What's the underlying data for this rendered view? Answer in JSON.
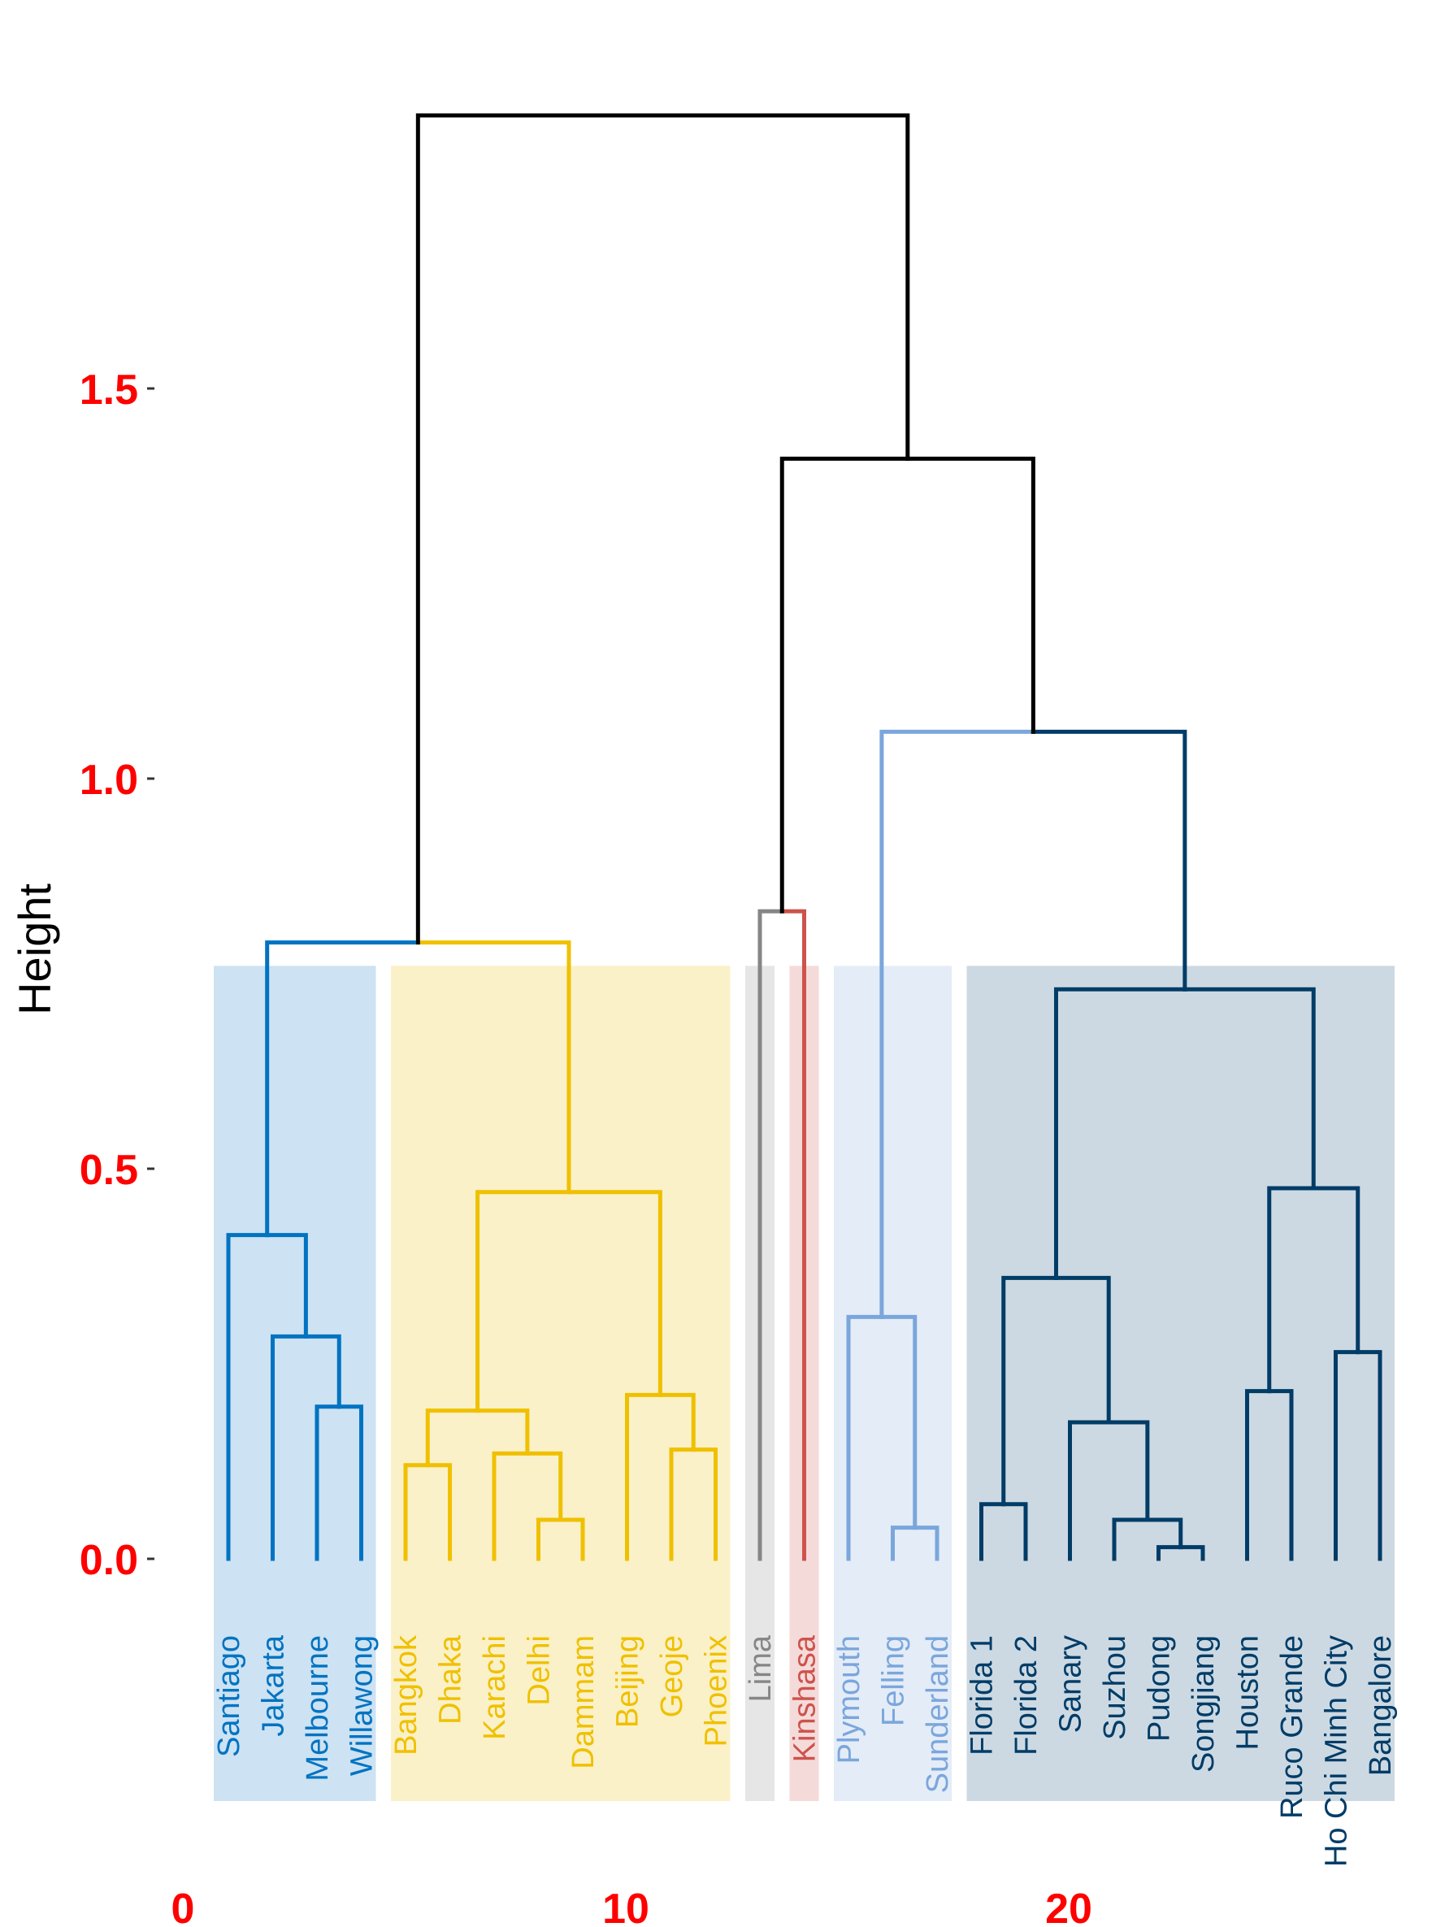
{
  "chart_data": {
    "type": "dendrogram",
    "ylabel": "Height",
    "ylim": [
      -0.3,
      1.85
    ],
    "xlim": [
      0,
      26
    ],
    "yticks": [
      0.0,
      0.5,
      1.0,
      1.5
    ],
    "ytick_labels": [
      "0.0",
      "0.5",
      "1.0",
      "1.5"
    ],
    "xticks": [
      0,
      10,
      20
    ],
    "xtick_labels": [
      "0",
      "10",
      "20"
    ],
    "axis_color": "#ff0000",
    "clusters": [
      {
        "color": "#0073c2",
        "rect_color": "#cde2f2",
        "leaves": [
          "Santiago",
          "Jakarta",
          "Melbourne",
          "Willawong"
        ]
      },
      {
        "color": "#efc000",
        "rect_color": "#fbf1c8",
        "leaves": [
          "Bangkok",
          "Dhaka",
          "Karachi",
          "Delhi",
          "Dammam",
          "Beijing",
          "Geoje",
          "Phoenix"
        ]
      },
      {
        "color": "#868686",
        "rect_color": "#e6e6e6",
        "leaves": [
          "Lima"
        ]
      },
      {
        "color": "#cd534c",
        "rect_color": "#f4dbda",
        "leaves": [
          "Kinshasa"
        ]
      },
      {
        "color": "#7aa6dc",
        "rect_color": "#e4ecf7",
        "leaves": [
          "Plymouth",
          "Felling",
          "Sunderland"
        ]
      },
      {
        "color": "#003c67",
        "rect_color": "#cdd9e2",
        "leaves": [
          "Florida 1",
          "Florida 2",
          "Sanary",
          "Suzhou",
          "Pudong",
          "Songjiang",
          "Houston",
          "Ruco Grande",
          "Ho Chi Minh City",
          "Bangalore"
        ]
      }
    ],
    "merges": [
      {
        "a": "Delhi",
        "b": "Dammam",
        "height": 0.05,
        "color": "#efc000"
      },
      {
        "a": "Pudong",
        "b": "Songjiang",
        "height": 0.015,
        "color": "#003c67"
      },
      {
        "a": "Florida 1",
        "b": "Florida 2",
        "height": 0.07,
        "color": "#003c67"
      },
      {
        "a": "Felling",
        "b": "Sunderland",
        "height": 0.04,
        "color": "#7aa6dc"
      },
      {
        "a": "Suzhou",
        "b": [
          "Pudong",
          "Songjiang"
        ],
        "height": 0.05,
        "color": "#003c67"
      },
      {
        "a": "Bangkok",
        "b": "Dhaka",
        "height": 0.12,
        "color": "#efc000"
      },
      {
        "a": "Karachi",
        "b": [
          "Delhi",
          "Dammam"
        ],
        "height": 0.135,
        "color": "#efc000"
      },
      {
        "a": "Geoje",
        "b": "Phoenix",
        "height": 0.14,
        "color": "#efc000"
      },
      {
        "a": "Sanary",
        "b": [
          "Suzhou",
          "Pudong",
          "Songjiang"
        ],
        "height": 0.175,
        "color": "#003c67"
      },
      {
        "a": [
          "Bangkok",
          "Dhaka"
        ],
        "b": [
          "Karachi",
          "Delhi",
          "Dammam"
        ],
        "height": 0.19,
        "color": "#efc000"
      },
      {
        "a": "Melbourne",
        "b": "Willawong",
        "height": 0.195,
        "color": "#0073c2"
      },
      {
        "a": "Houston",
        "b": "Ruco Grande",
        "height": 0.215,
        "color": "#003c67"
      },
      {
        "a": "Beijing",
        "b": [
          "Geoje",
          "Phoenix"
        ],
        "height": 0.21,
        "color": "#efc000"
      },
      {
        "a": "Ho Chi Minh City",
        "b": "Bangalore",
        "height": 0.265,
        "color": "#003c67"
      },
      {
        "a": "Jakarta",
        "b": [
          "Melbourne",
          "Willawong"
        ],
        "height": 0.285,
        "color": "#0073c2"
      },
      {
        "a": "Plymouth",
        "b": [
          "Felling",
          "Sunderland"
        ],
        "height": 0.31,
        "color": "#7aa6dc"
      },
      {
        "a": [
          "Florida 1",
          "Florida 2"
        ],
        "b": [
          "Sanary",
          "Suzhou",
          "Pudong",
          "Songjiang"
        ],
        "height": 0.36,
        "color": "#003c67"
      },
      {
        "a": "Santiago",
        "b": [
          "Jakarta",
          "Melbourne",
          "Willawong"
        ],
        "height": 0.415,
        "color": "#0073c2"
      },
      {
        "a": [
          "Houston",
          "Ruco Grande"
        ],
        "b": [
          "Ho Chi Minh City",
          "Bangalore"
        ],
        "height": 0.475,
        "color": "#003c67"
      },
      {
        "a": [
          "Bangkok",
          "Dhaka",
          "Karachi",
          "Delhi",
          "Dammam"
        ],
        "b": [
          "Beijing",
          "Geoje",
          "Phoenix"
        ],
        "height": 0.47,
        "color": "#efc000"
      },
      {
        "a": [
          "Florida 1",
          "Florida 2",
          "Sanary",
          "Suzhou",
          "Pudong",
          "Songjiang"
        ],
        "b": [
          "Houston",
          "Ruco Grande",
          "Ho Chi Minh City",
          "Bangalore"
        ],
        "height": 0.73,
        "color": "#003c67"
      },
      {
        "a": [
          "Santiago",
          "Jakarta",
          "Melbourne",
          "Willawong"
        ],
        "b": [
          "Bangkok",
          "Dhaka",
          "Karachi",
          "Delhi",
          "Dammam",
          "Beijing",
          "Geoje",
          "Phoenix"
        ],
        "height": 0.79,
        "color": [
          "#0073c2",
          "#efc000"
        ]
      },
      {
        "a": "Lima",
        "b": "Kinshasa",
        "height": 0.83,
        "color": [
          "#868686",
          "#cd534c"
        ]
      },
      {
        "a": [
          "Plymouth",
          "Felling",
          "Sunderland"
        ],
        "b": [
          "Florida 1",
          "Florida 2",
          "Sanary",
          "Suzhou",
          "Pudong",
          "Songjiang",
          "Houston",
          "Ruco Grande",
          "Ho Chi Minh City",
          "Bangalore"
        ],
        "height": 1.06,
        "color": [
          "#7aa6dc",
          "#003c67"
        ]
      },
      {
        "a": [
          "Lima",
          "Kinshasa"
        ],
        "b": [
          "Plymouth",
          "Felling",
          "Sunderland",
          "Florida 1",
          "Florida 2",
          "Sanary",
          "Suzhou",
          "Pudong",
          "Songjiang",
          "Houston",
          "Ruco Grande",
          "Ho Chi Minh City",
          "Bangalore"
        ],
        "height": 1.41,
        "color": "#000000"
      },
      {
        "a": [
          "Santiago",
          "Jakarta",
          "Melbourne",
          "Willawong",
          "Bangkok",
          "Dhaka",
          "Karachi",
          "Delhi",
          "Dammam",
          "Beijing",
          "Geoje",
          "Phoenix"
        ],
        "b": [
          "Lima",
          "Kinshasa",
          "Plymouth",
          "Felling",
          "Sunderland",
          "Florida 1",
          "Florida 2",
          "Sanary",
          "Suzhou",
          "Pudong",
          "Songjiang",
          "Houston",
          "Ruco Grande",
          "Ho Chi Minh City",
          "Bangalore"
        ],
        "height": 1.85,
        "color": "#000000"
      }
    ]
  }
}
